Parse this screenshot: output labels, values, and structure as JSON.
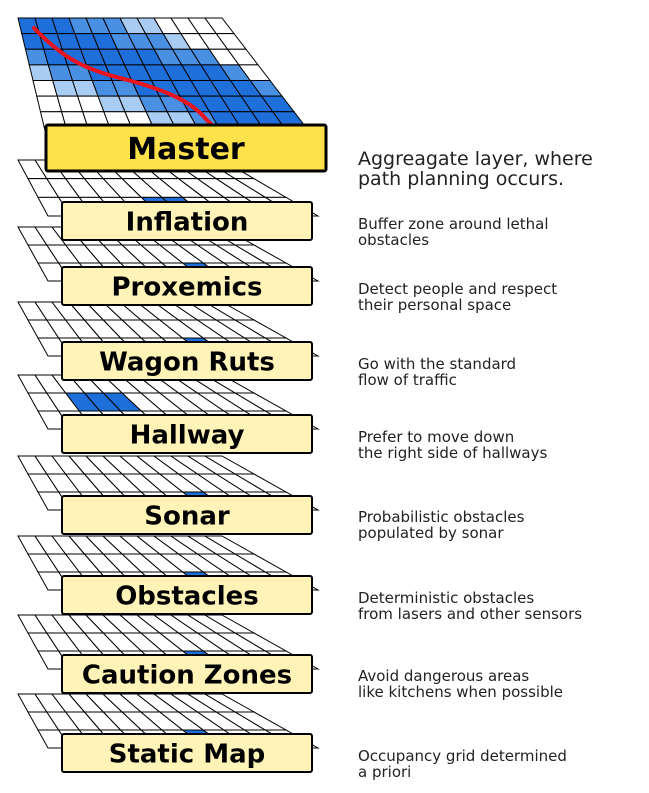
{
  "layers": [
    {
      "name": "Master",
      "desc": [
        "Aggreagate layer, where",
        "path planning occurs."
      ]
    },
    {
      "name": "Inflation",
      "desc": [
        "Buffer zone around lethal",
        "obstacles"
      ]
    },
    {
      "name": "Proxemics",
      "desc": [
        "Detect people and respect",
        "their personal space"
      ]
    },
    {
      "name": "Wagon Ruts",
      "desc": [
        "Go with the standard",
        "flow of traffic"
      ]
    },
    {
      "name": "Hallway",
      "desc": [
        "Prefer to move down",
        "the right side of hallways"
      ]
    },
    {
      "name": "Sonar",
      "desc": [
        "Probabilistic obstacles",
        "populated by sonar"
      ]
    },
    {
      "name": "Obstacles",
      "desc": [
        "Deterministic obstacles",
        "from lasers and other sensors"
      ]
    },
    {
      "name": "Caution Zones",
      "desc": [
        "Avoid dangerous areas",
        "like kitchens when possible"
      ]
    },
    {
      "name": "Static Map",
      "desc": [
        "Occupancy grid determined",
        "a priori"
      ]
    }
  ],
  "colors": {
    "master_label_fill": "#FFE24A",
    "label_fill": "#FFF3B8",
    "cell_dark": "#1E6FD9",
    "cell_mid": "#4A90E2",
    "cell_light": "#A9CDF2",
    "path": "#E8141E"
  }
}
